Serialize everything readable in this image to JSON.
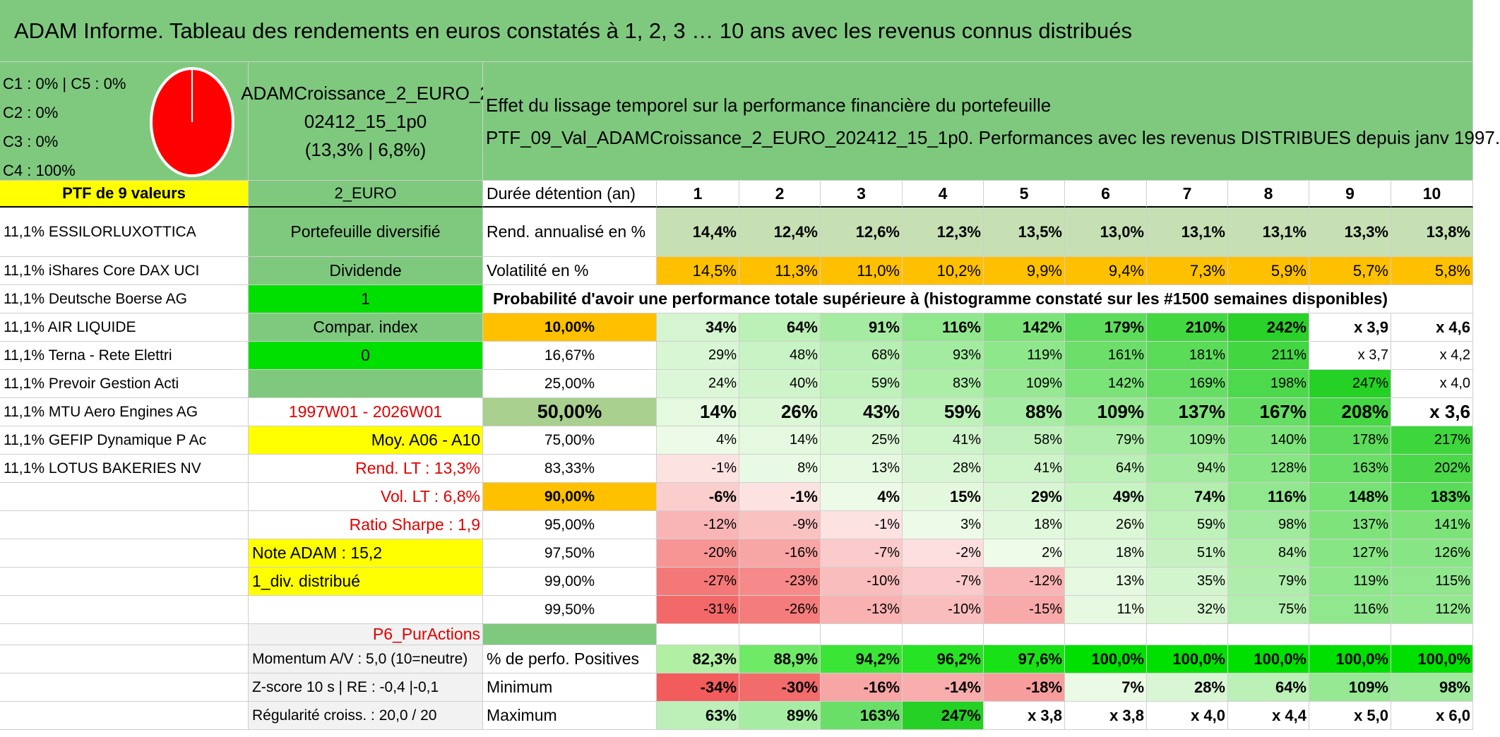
{
  "title": "ADAM Informe. Tableau des rendements en euros constatés à 1, 2, 3 … 10 ans avec les revenus connus distribués",
  "pie": {
    "labels": [
      "C1 : 0% | C5 : 0%",
      "C2 : 0%",
      "C3 : 0%",
      "C4 : 100%"
    ],
    "color": "#ff0000"
  },
  "fund": {
    "line1": "ADAMCroissance_2_EURO_2",
    "line2": "02412_15_1p0",
    "line3": "(13,3% | 6,8%)"
  },
  "effect": {
    "line1": "Effet du lissage temporel sur la performance financière du portefeuille",
    "line2": "PTF_09_Val_ADAMCroissance_2_EURO_202412_15_1p0. Performances avec les revenus DISTRIBUES depuis janv 1997."
  },
  "ptf_header": "PTF de 9 valeurs",
  "currency": "2_EURO",
  "holdings": [
    "11,1% ESSILORLUXOTTICA",
    "11,1% iShares Core DAX UCI",
    "11,1% Deutsche Boerse AG",
    "11,1% AIR LIQUIDE",
    "11,1% Terna - Rete Elettri",
    "11,1% Prevoir Gestion Acti",
    "11,1% MTU Aero Engines AG",
    "11,1% GEFIP Dynamique P Ac",
    "11,1% LOTUS BAKERIES NV"
  ],
  "info": {
    "portefeuille": "Portefeuille diversifié",
    "dividende": "Dividende",
    "dividende_val": "1",
    "compar": "Compar. index",
    "compar_val": "0",
    "period": "1997W01 - 2026W01",
    "moy": "Moy. A06 - A10",
    "rend_lt": "Rend. LT : 13,3%",
    "vol_lt": "Vol. LT : 6,8%",
    "sharpe": "Ratio Sharpe : 1,9",
    "note": "Note ADAM : 15,2",
    "div": "1_div. distribué",
    "p6": "P6_PurActions",
    "momentum": "Momentum A/V : 5,0 (10=neutre)",
    "zscore": "Z-score 10 s | RE : -0,4 |-0,1",
    "regularite": "Régularité croiss. : 20,0 / 20"
  },
  "table": {
    "duree_label": "Durée détention (an)",
    "years": [
      "1",
      "2",
      "3",
      "4",
      "5",
      "6",
      "7",
      "8",
      "9",
      "10"
    ],
    "rend_label": "Rend. annualisé en %",
    "rend": [
      "14,4%",
      "12,4%",
      "12,6%",
      "12,3%",
      "13,5%",
      "13,0%",
      "13,1%",
      "13,1%",
      "13,3%",
      "13,8%"
    ],
    "vol_label": "Volatilité en %",
    "vol": [
      "14,5%",
      "11,3%",
      "11,0%",
      "10,2%",
      "9,9%",
      "9,4%",
      "7,3%",
      "5,9%",
      "5,7%",
      "5,8%"
    ],
    "prob_header": "Probabilité d'avoir une performance totale supérieure à (histogramme constaté sur les #1500 semaines disponibles)",
    "probs": [
      {
        "label": "10,00%",
        "values": [
          "34%",
          "64%",
          "91%",
          "116%",
          "142%",
          "179%",
          "210%",
          "242%",
          "x 3,9",
          "x 4,6"
        ]
      },
      {
        "label": "16,67%",
        "values": [
          "29%",
          "48%",
          "68%",
          "93%",
          "119%",
          "161%",
          "181%",
          "211%",
          "x 3,7",
          "x 4,2"
        ]
      },
      {
        "label": "25,00%",
        "values": [
          "24%",
          "40%",
          "59%",
          "83%",
          "109%",
          "142%",
          "169%",
          "198%",
          "247%",
          "x 4,0"
        ]
      },
      {
        "label": "50,00%",
        "values": [
          "14%",
          "26%",
          "43%",
          "59%",
          "88%",
          "109%",
          "137%",
          "167%",
          "208%",
          "x 3,6"
        ]
      },
      {
        "label": "75,00%",
        "values": [
          "4%",
          "14%",
          "25%",
          "41%",
          "58%",
          "79%",
          "109%",
          "140%",
          "178%",
          "217%"
        ]
      },
      {
        "label": "83,33%",
        "values": [
          "-1%",
          "8%",
          "13%",
          "28%",
          "41%",
          "64%",
          "94%",
          "128%",
          "163%",
          "202%"
        ]
      },
      {
        "label": "90,00%",
        "values": [
          "-6%",
          "-1%",
          "4%",
          "15%",
          "29%",
          "49%",
          "74%",
          "116%",
          "148%",
          "183%"
        ]
      },
      {
        "label": "95,00%",
        "values": [
          "-12%",
          "-9%",
          "-1%",
          "3%",
          "18%",
          "26%",
          "59%",
          "98%",
          "137%",
          "141%"
        ]
      },
      {
        "label": "97,50%",
        "values": [
          "-20%",
          "-16%",
          "-7%",
          "-2%",
          "2%",
          "18%",
          "51%",
          "84%",
          "127%",
          "126%"
        ]
      },
      {
        "label": "99,00%",
        "values": [
          "-27%",
          "-23%",
          "-10%",
          "-7%",
          "-12%",
          "13%",
          "35%",
          "79%",
          "119%",
          "115%"
        ]
      },
      {
        "label": "99,50%",
        "values": [
          "-31%",
          "-26%",
          "-13%",
          "-10%",
          "-15%",
          "11%",
          "32%",
          "75%",
          "116%",
          "112%"
        ]
      }
    ],
    "pos_label": "% de perfo. Positives",
    "pos": [
      "82,3%",
      "88,9%",
      "94,2%",
      "96,2%",
      "97,6%",
      "100,0%",
      "100,0%",
      "100,0%",
      "100,0%",
      "100,0%"
    ],
    "min_label": "Minimum",
    "min": [
      "-34%",
      "-30%",
      "-16%",
      "-14%",
      "-18%",
      "7%",
      "28%",
      "64%",
      "109%",
      "98%"
    ],
    "max_label": "Maximum",
    "max": [
      "63%",
      "89%",
      "163%",
      "247%",
      "x 3,8",
      "x 3,8",
      "x 4,0",
      "x 4,4",
      "x 5,0",
      "x 6,0"
    ]
  }
}
